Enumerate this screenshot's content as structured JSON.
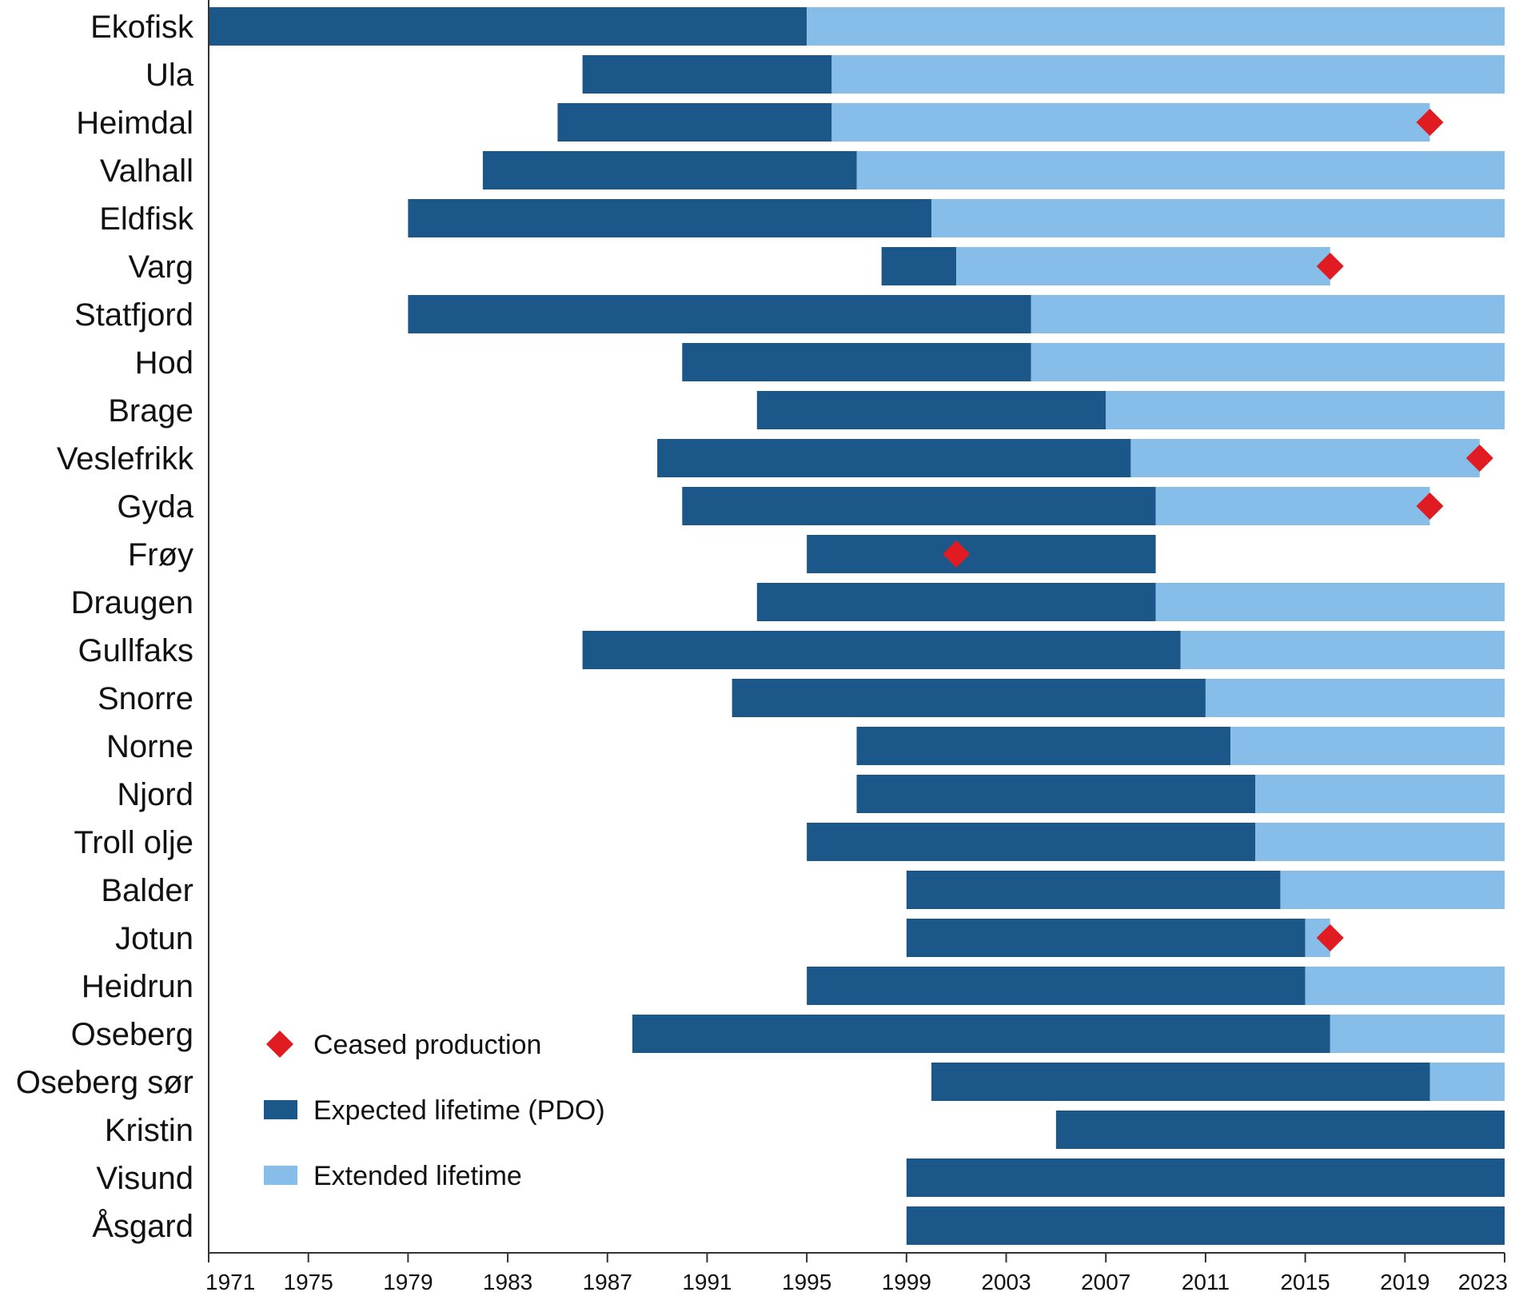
{
  "chart_data": {
    "type": "bar",
    "orientation": "horizontal",
    "stacked": true,
    "title": "",
    "xlabel": "",
    "ylabel": "",
    "xlim": [
      1971,
      2023
    ],
    "x_ticks": [
      "1971",
      "1975",
      "1979",
      "1983",
      "1987",
      "1991",
      "1995",
      "1999",
      "2003",
      "2007",
      "2011",
      "2015",
      "2019",
      "2023"
    ],
    "legend_position": "bottom-left inside",
    "colors": {
      "expected": "#1b5788",
      "extended": "#86bde9",
      "ceased": "#e11b22"
    },
    "legend": [
      {
        "key": "ceased",
        "label": "Ceased production"
      },
      {
        "key": "expected",
        "label": "Expected lifetime (PDO)"
      },
      {
        "key": "extended",
        "label": "Extended lifetime"
      }
    ],
    "fields": [
      {
        "name": "Ekofisk",
        "start": 1971,
        "expected_end": 1995,
        "extended_end": 2023,
        "ceased": null
      },
      {
        "name": "Ula",
        "start": 1986,
        "expected_end": 1996,
        "extended_end": 2023,
        "ceased": null
      },
      {
        "name": "Heimdal",
        "start": 1985,
        "expected_end": 1996,
        "extended_end": 2020,
        "ceased": 2020
      },
      {
        "name": "Valhall",
        "start": 1982,
        "expected_end": 1997,
        "extended_end": 2023,
        "ceased": null
      },
      {
        "name": "Eldfisk",
        "start": 1979,
        "expected_end": 2000,
        "extended_end": 2023,
        "ceased": null
      },
      {
        "name": "Varg",
        "start": 1998,
        "expected_end": 2001,
        "extended_end": 2016,
        "ceased": 2016
      },
      {
        "name": "Statfjord",
        "start": 1979,
        "expected_end": 2004,
        "extended_end": 2023,
        "ceased": null
      },
      {
        "name": "Hod",
        "start": 1990,
        "expected_end": 2004,
        "extended_end": 2023,
        "ceased": null
      },
      {
        "name": "Brage",
        "start": 1993,
        "expected_end": 2007,
        "extended_end": 2023,
        "ceased": null
      },
      {
        "name": "Veslefrikk",
        "start": 1989,
        "expected_end": 2008,
        "extended_end": 2022,
        "ceased": 2022
      },
      {
        "name": "Gyda",
        "start": 1990,
        "expected_end": 2009,
        "extended_end": 2020,
        "ceased": 2020
      },
      {
        "name": "Frøy",
        "start": 1995,
        "expected_end": 2009,
        "extended_end": null,
        "ceased": 2001
      },
      {
        "name": "Draugen",
        "start": 1993,
        "expected_end": 2009,
        "extended_end": 2023,
        "ceased": null
      },
      {
        "name": "Gullfaks",
        "start": 1986,
        "expected_end": 2010,
        "extended_end": 2023,
        "ceased": null
      },
      {
        "name": "Snorre",
        "start": 1992,
        "expected_end": 2011,
        "extended_end": 2023,
        "ceased": null
      },
      {
        "name": "Norne",
        "start": 1997,
        "expected_end": 2012,
        "extended_end": 2023,
        "ceased": null
      },
      {
        "name": "Njord",
        "start": 1997,
        "expected_end": 2013,
        "extended_end": 2023,
        "ceased": null
      },
      {
        "name": "Troll olje",
        "start": 1995,
        "expected_end": 2013,
        "extended_end": 2023,
        "ceased": null
      },
      {
        "name": "Balder",
        "start": 1999,
        "expected_end": 2014,
        "extended_end": 2023,
        "ceased": null
      },
      {
        "name": "Jotun",
        "start": 1999,
        "expected_end": 2015,
        "extended_end": 2016,
        "ceased": 2016
      },
      {
        "name": "Heidrun",
        "start": 1995,
        "expected_end": 2015,
        "extended_end": 2023,
        "ceased": null
      },
      {
        "name": "Oseberg",
        "start": 1988,
        "expected_end": 2016,
        "extended_end": 2023,
        "ceased": null
      },
      {
        "name": "Oseberg sør",
        "start": 2000,
        "expected_end": 2020,
        "extended_end": 2023,
        "ceased": null
      },
      {
        "name": "Kristin",
        "start": 2005,
        "expected_end": 2023,
        "extended_end": null,
        "ceased": null
      },
      {
        "name": "Visund",
        "start": 1999,
        "expected_end": 2023,
        "extended_end": null,
        "ceased": null
      },
      {
        "name": "Åsgard",
        "start": 1999,
        "expected_end": 2023,
        "extended_end": null,
        "ceased": null
      }
    ]
  }
}
